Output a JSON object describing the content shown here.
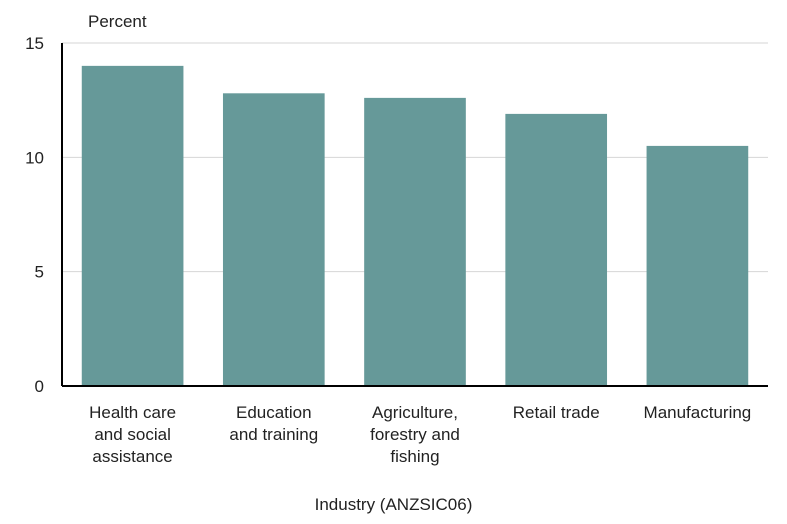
{
  "chart_data": {
    "type": "bar",
    "title": "",
    "ylabel": "Percent",
    "xlabel": "Industry (ANZSIC06)",
    "ylim": [
      0,
      15
    ],
    "yticks": [
      0,
      5,
      10,
      15
    ],
    "grid": true,
    "bar_color": "#669999",
    "categories": [
      [
        "Health care",
        "and social",
        "assistance"
      ],
      [
        "Education",
        "and training"
      ],
      [
        "Agriculture,",
        "forestry and",
        "fishing"
      ],
      [
        "Retail trade"
      ],
      [
        "Manufacturing"
      ]
    ],
    "values": [
      14.0,
      12.8,
      12.6,
      11.9,
      10.5
    ]
  }
}
